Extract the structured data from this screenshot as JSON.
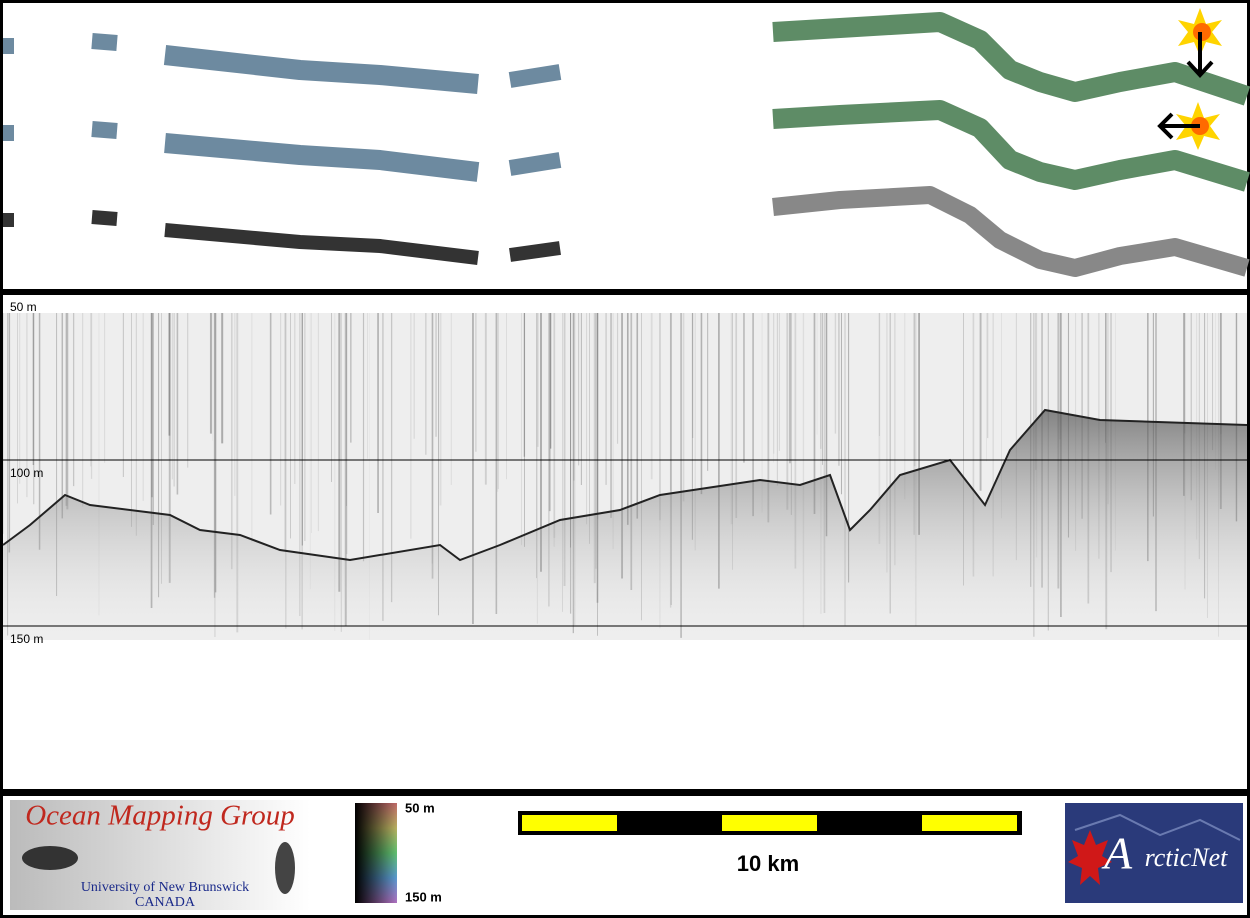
{
  "echogram": {
    "depth_labels": [
      "50 m",
      "100 m",
      "150 m"
    ]
  },
  "logo": {
    "title": "Ocean Mapping Group",
    "university": "University of New Brunswick",
    "country": "CANADA"
  },
  "colorbar": {
    "top_label": "50 m",
    "bottom_label": "150 m"
  },
  "scale_bar": {
    "label": "10 km"
  },
  "arcticnet": {
    "initial": "A",
    "rest": "rcticNet"
  }
}
